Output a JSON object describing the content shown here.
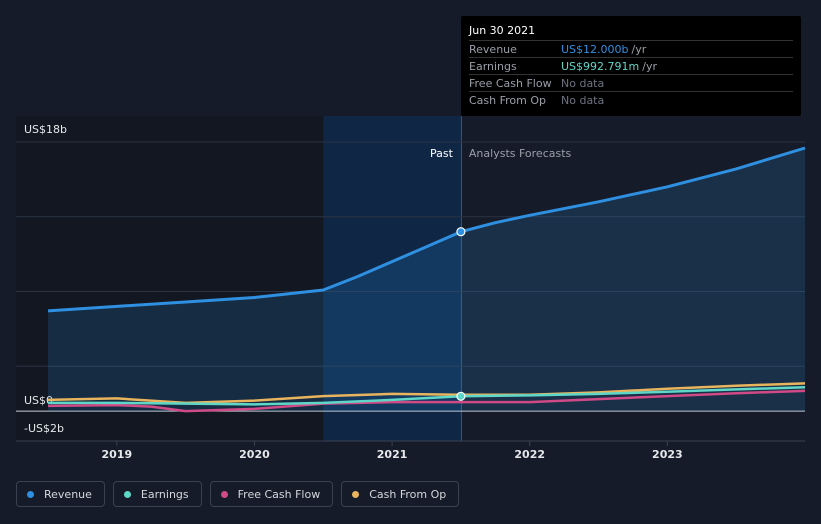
{
  "chart_data": {
    "type": "area",
    "title": "",
    "xlabel": "",
    "ylabel": "",
    "ylim": [
      -2,
      18
    ],
    "xlim": [
      2018.5,
      2024.0
    ],
    "y_tick_labels": [
      {
        "value": 18,
        "label": "US$18b"
      },
      {
        "value": 0,
        "label": "US$0"
      },
      {
        "value": -2,
        "label": "-US$2b"
      }
    ],
    "x_ticks": [
      {
        "value": 2019,
        "label": "2019"
      },
      {
        "value": 2020,
        "label": "2020"
      },
      {
        "value": 2021,
        "label": "2021"
      },
      {
        "value": 2022,
        "label": "2022"
      },
      {
        "value": 2023,
        "label": "2023"
      }
    ],
    "grid": true,
    "past_label": "Past",
    "forecast_label": "Analysts Forecasts",
    "divider_x": 2021.5,
    "highlight_start_x": 2020.5,
    "series": [
      {
        "name": "Revenue",
        "color": "#2f8fe0",
        "x": [
          2018.5,
          2019.0,
          2019.5,
          2020.0,
          2020.25,
          2020.5,
          2020.75,
          2021.0,
          2021.25,
          2021.5,
          2021.75,
          2022.0,
          2022.5,
          2023.0,
          2023.5,
          2024.0
        ],
        "values": [
          6.7,
          7.0,
          7.3,
          7.6,
          7.85,
          8.1,
          9.0,
          10.0,
          11.0,
          12.0,
          12.6,
          13.1,
          14.0,
          15.0,
          16.2,
          17.6
        ]
      },
      {
        "name": "Earnings",
        "color": "#5ed6c8",
        "x": [
          2018.5,
          2019.0,
          2019.5,
          2020.0,
          2020.5,
          2021.0,
          2021.5,
          2022.0,
          2022.5,
          2023.0,
          2023.5,
          2024.0
        ],
        "values": [
          0.55,
          0.55,
          0.5,
          0.45,
          0.55,
          0.75,
          0.99,
          1.05,
          1.15,
          1.3,
          1.45,
          1.6
        ]
      },
      {
        "name": "Free Cash Flow",
        "color": "#d04a86",
        "x": [
          2018.5,
          2019.0,
          2019.25,
          2019.5,
          2020.0,
          2020.5,
          2021.0,
          2021.5,
          2022.0,
          2022.5,
          2023.0,
          2023.5,
          2024.0
        ],
        "values": [
          0.35,
          0.4,
          0.3,
          0.0,
          0.15,
          0.5,
          0.6,
          0.6,
          0.6,
          0.8,
          1.0,
          1.2,
          1.35
        ]
      },
      {
        "name": "Cash From Op",
        "color": "#e8b45d",
        "x": [
          2018.5,
          2019.0,
          2019.5,
          2020.0,
          2020.5,
          2021.0,
          2021.5,
          2022.0,
          2022.5,
          2023.0,
          2023.5,
          2024.0
        ],
        "values": [
          0.75,
          0.85,
          0.55,
          0.7,
          1.0,
          1.15,
          1.1,
          1.1,
          1.25,
          1.5,
          1.7,
          1.85
        ]
      }
    ],
    "marker": {
      "x": 2021.5,
      "series": [
        "Revenue",
        "Earnings"
      ]
    }
  },
  "tooltip": {
    "date": "Jun 30 2021",
    "rows": [
      {
        "label": "Revenue",
        "value": "US$12.000b",
        "unit": "/yr",
        "color": "#2f8fe0"
      },
      {
        "label": "Earnings",
        "value": "US$992.791m",
        "unit": "/yr",
        "color": "#5ed6c8"
      },
      {
        "label": "Free Cash Flow",
        "value": "No data",
        "unit": "",
        "color": "#6c7280"
      },
      {
        "label": "Cash From Op",
        "value": "No data",
        "unit": "",
        "color": "#6c7280"
      }
    ]
  },
  "legend": [
    {
      "label": "Revenue",
      "color": "#2f8fe0"
    },
    {
      "label": "Earnings",
      "color": "#5ed6c8"
    },
    {
      "label": "Free Cash Flow",
      "color": "#d04a86"
    },
    {
      "label": "Cash From Op",
      "color": "#e8b45d"
    }
  ]
}
